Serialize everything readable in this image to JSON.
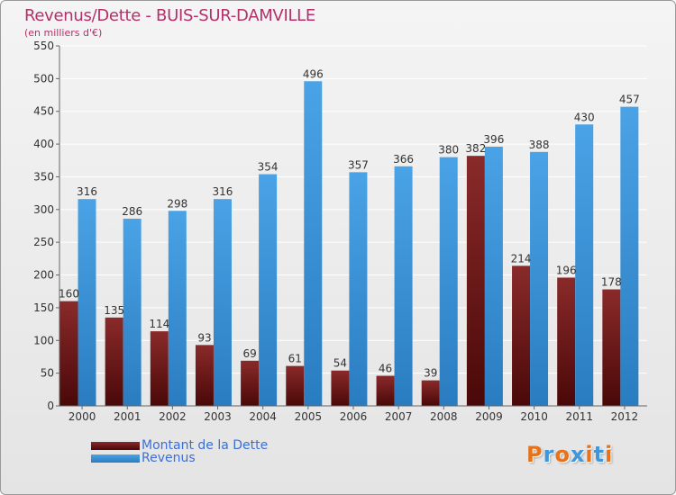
{
  "chart_data": {
    "type": "bar",
    "title": "Revenus/Dette - BUIS-SUR-DAMVILLE",
    "subtitle": "(en milliers d'€)",
    "categories": [
      "2000",
      "2001",
      "2002",
      "2003",
      "2004",
      "2005",
      "2006",
      "2007",
      "2008",
      "2009",
      "2010",
      "2011",
      "2012"
    ],
    "series": [
      {
        "name": "Montant de la Dette",
        "color": "#7a1c1c",
        "values": [
          160,
          135,
          114,
          93,
          69,
          61,
          54,
          46,
          39,
          382,
          214,
          196,
          178
        ]
      },
      {
        "name": "Revenus",
        "color": "#3f97db",
        "values": [
          316,
          286,
          298,
          316,
          354,
          496,
          357,
          366,
          380,
          396,
          388,
          430,
          457
        ]
      }
    ],
    "ylim": [
      0,
      550
    ],
    "yticks": [
      0,
      50,
      100,
      150,
      200,
      250,
      300,
      350,
      400,
      450,
      500,
      550
    ],
    "grid": true,
    "legend_position": "bottom-left"
  },
  "logo": {
    "text": "Proxiti",
    "colors": [
      "#e8721c",
      "#3f97db",
      "#e8721c",
      "#3f97db",
      "#e8721c",
      "#3f97db",
      "#e8721c"
    ]
  }
}
